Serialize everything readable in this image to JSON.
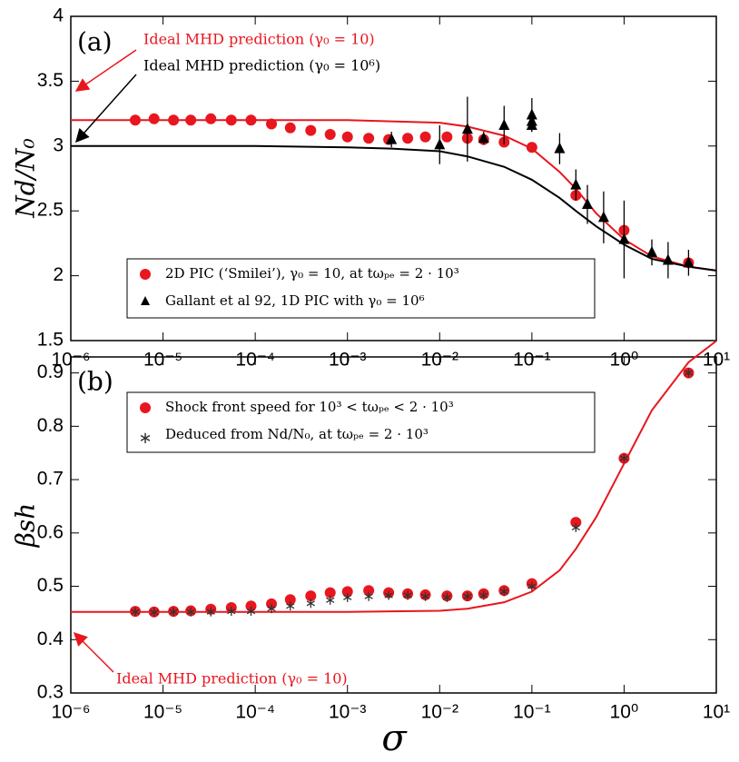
{
  "chart_data": [
    {
      "type": "line",
      "panel_label": "(a)",
      "ylabel": "Nd/N₀",
      "xscale": "log",
      "xlim": [
        1e-06,
        10
      ],
      "ylim": [
        1.5,
        4
      ],
      "xticks": [
        {
          "value": 1e-06,
          "label": "10⁻⁶"
        },
        {
          "value": 1e-05,
          "label": "10⁻⁵"
        },
        {
          "value": 0.0001,
          "label": "10⁻⁴"
        },
        {
          "value": 0.001,
          "label": "10⁻³"
        },
        {
          "value": 0.01,
          "label": "10⁻²"
        },
        {
          "value": 0.1,
          "label": "10⁻¹"
        },
        {
          "value": 1,
          "label": "10⁰"
        },
        {
          "value": 10,
          "label": "10¹"
        }
      ],
      "yticks": [
        1.5,
        2,
        2.5,
        3,
        3.5,
        4
      ],
      "annotations": [
        {
          "text": "Ideal MHD prediction (γ₀ = 10)",
          "color": "#e8161e"
        },
        {
          "text": "Ideal MHD prediction (γ₀ = 10⁶)",
          "color": "#000000"
        }
      ],
      "series": [
        {
          "color": "#e8161e",
          "marker": "none",
          "x": [
            1e-06,
            1e-05,
            0.0001,
            0.001,
            0.003,
            0.01,
            0.02,
            0.05,
            0.1,
            0.2,
            0.3,
            0.5,
            1,
            2,
            5,
            10
          ],
          "values": [
            3.2,
            3.2,
            3.2,
            3.2,
            3.19,
            3.18,
            3.15,
            3.08,
            2.98,
            2.8,
            2.67,
            2.48,
            2.28,
            2.15,
            2.07,
            2.04
          ]
        },
        {
          "color": "#000000",
          "marker": "none",
          "x": [
            1e-06,
            1e-05,
            0.0001,
            0.001,
            0.003,
            0.01,
            0.02,
            0.05,
            0.1,
            0.2,
            0.3,
            0.5,
            1,
            2,
            5,
            10
          ],
          "values": [
            3.0,
            3.0,
            3.0,
            2.99,
            2.98,
            2.96,
            2.92,
            2.84,
            2.74,
            2.6,
            2.5,
            2.38,
            2.24,
            2.13,
            2.07,
            2.04
          ]
        },
        {
          "name": "2D PIC (‘Smilei’), γ₀ = 10, at tωₚₑ = 2 · 10³",
          "color": "#e8161e",
          "marker": "circle",
          "x": [
            5e-06,
            8e-06,
            1.3e-05,
            2e-05,
            3.3e-05,
            5.5e-05,
            9e-05,
            0.00015,
            0.00024,
            0.0004,
            0.00065,
            0.001,
            0.0017,
            0.0028,
            0.0045,
            0.007,
            0.012,
            0.02,
            0.03,
            0.05,
            0.1,
            0.3,
            1,
            5
          ],
          "values": [
            3.2,
            3.21,
            3.2,
            3.2,
            3.21,
            3.2,
            3.2,
            3.17,
            3.14,
            3.12,
            3.09,
            3.07,
            3.06,
            3.05,
            3.06,
            3.07,
            3.07,
            3.06,
            3.05,
            3.03,
            2.99,
            2.62,
            2.35,
            2.1
          ]
        },
        {
          "name": "Gallant et al 92, 1D PIC with γ₀ = 10⁶",
          "color": "#000000",
          "marker": "triangle",
          "x": [
            0.003,
            0.01,
            0.02,
            0.03,
            0.05,
            0.1,
            0.1,
            0.1,
            0.2,
            0.3,
            0.4,
            0.6,
            1,
            2,
            3,
            5
          ],
          "values": [
            3.05,
            3.01,
            3.13,
            3.06,
            3.16,
            3.24,
            3.19,
            3.16,
            2.98,
            2.7,
            2.55,
            2.45,
            2.28,
            2.18,
            2.12,
            2.1
          ],
          "errors": [
            0.06,
            0.15,
            0.25,
            0.05,
            0.15,
            0.13,
            0.08,
            0.05,
            0.12,
            0.12,
            0.15,
            0.2,
            0.3,
            0.1,
            0.14,
            0.1
          ]
        }
      ]
    },
    {
      "type": "line",
      "panel_label": "(b)",
      "ylabel": "βsh",
      "xlabel": "σ",
      "xscale": "log",
      "xlim": [
        1e-06,
        10
      ],
      "ylim": [
        0.3,
        0.93
      ],
      "xticks": [
        {
          "value": 1e-06,
          "label": "10⁻⁶"
        },
        {
          "value": 1e-05,
          "label": "10⁻⁵"
        },
        {
          "value": 0.0001,
          "label": "10⁻⁴"
        },
        {
          "value": 0.001,
          "label": "10⁻³"
        },
        {
          "value": 0.01,
          "label": "10⁻²"
        },
        {
          "value": 0.1,
          "label": "10⁻¹"
        },
        {
          "value": 1,
          "label": "10⁰"
        },
        {
          "value": 10,
          "label": "10¹"
        }
      ],
      "yticks": [
        0.3,
        0.4,
        0.5,
        0.6,
        0.7,
        0.8,
        0.9
      ],
      "annotations": [
        {
          "text": "Ideal MHD prediction (γ₀ = 10)",
          "color": "#e8161e"
        }
      ],
      "series": [
        {
          "color": "#e8161e",
          "marker": "none",
          "x": [
            1e-06,
            1e-05,
            0.0001,
            0.001,
            0.003,
            0.01,
            0.02,
            0.05,
            0.1,
            0.2,
            0.3,
            0.5,
            1,
            2,
            5,
            10
          ],
          "values": [
            0.452,
            0.452,
            0.452,
            0.452,
            0.453,
            0.454,
            0.458,
            0.47,
            0.49,
            0.53,
            0.57,
            0.63,
            0.73,
            0.83,
            0.92,
            0.96
          ]
        },
        {
          "name": "Shock front speed for 10³ < tωₚₑ < 2 · 10³",
          "color": "#e8161e",
          "marker": "circle",
          "x": [
            5e-06,
            8e-06,
            1.3e-05,
            2e-05,
            3.3e-05,
            5.5e-05,
            9e-05,
            0.00015,
            0.00024,
            0.0004,
            0.00065,
            0.001,
            0.0017,
            0.0028,
            0.0045,
            0.007,
            0.012,
            0.02,
            0.03,
            0.05,
            0.1,
            0.3,
            1,
            5
          ],
          "values": [
            0.453,
            0.452,
            0.453,
            0.454,
            0.457,
            0.46,
            0.463,
            0.467,
            0.475,
            0.482,
            0.488,
            0.49,
            0.492,
            0.488,
            0.486,
            0.484,
            0.482,
            0.482,
            0.486,
            0.492,
            0.505,
            0.62,
            0.74,
            0.9
          ]
        },
        {
          "name": "Deduced from Nd/N₀, at tωₚₑ = 2 · 10³",
          "color": "#333333",
          "marker": "star",
          "x": [
            5e-06,
            8e-06,
            1.3e-05,
            2e-05,
            3.3e-05,
            5.5e-05,
            9e-05,
            0.00015,
            0.00024,
            0.0004,
            0.00065,
            0.001,
            0.0017,
            0.0028,
            0.0045,
            0.007,
            0.012,
            0.02,
            0.03,
            0.05,
            0.1,
            0.3,
            1,
            5
          ],
          "values": [
            0.452,
            0.451,
            0.452,
            0.452,
            0.452,
            0.453,
            0.453,
            0.458,
            0.463,
            0.468,
            0.474,
            0.479,
            0.481,
            0.483,
            0.483,
            0.481,
            0.479,
            0.481,
            0.483,
            0.49,
            0.5,
            0.61,
            0.74,
            0.9
          ]
        }
      ]
    }
  ]
}
